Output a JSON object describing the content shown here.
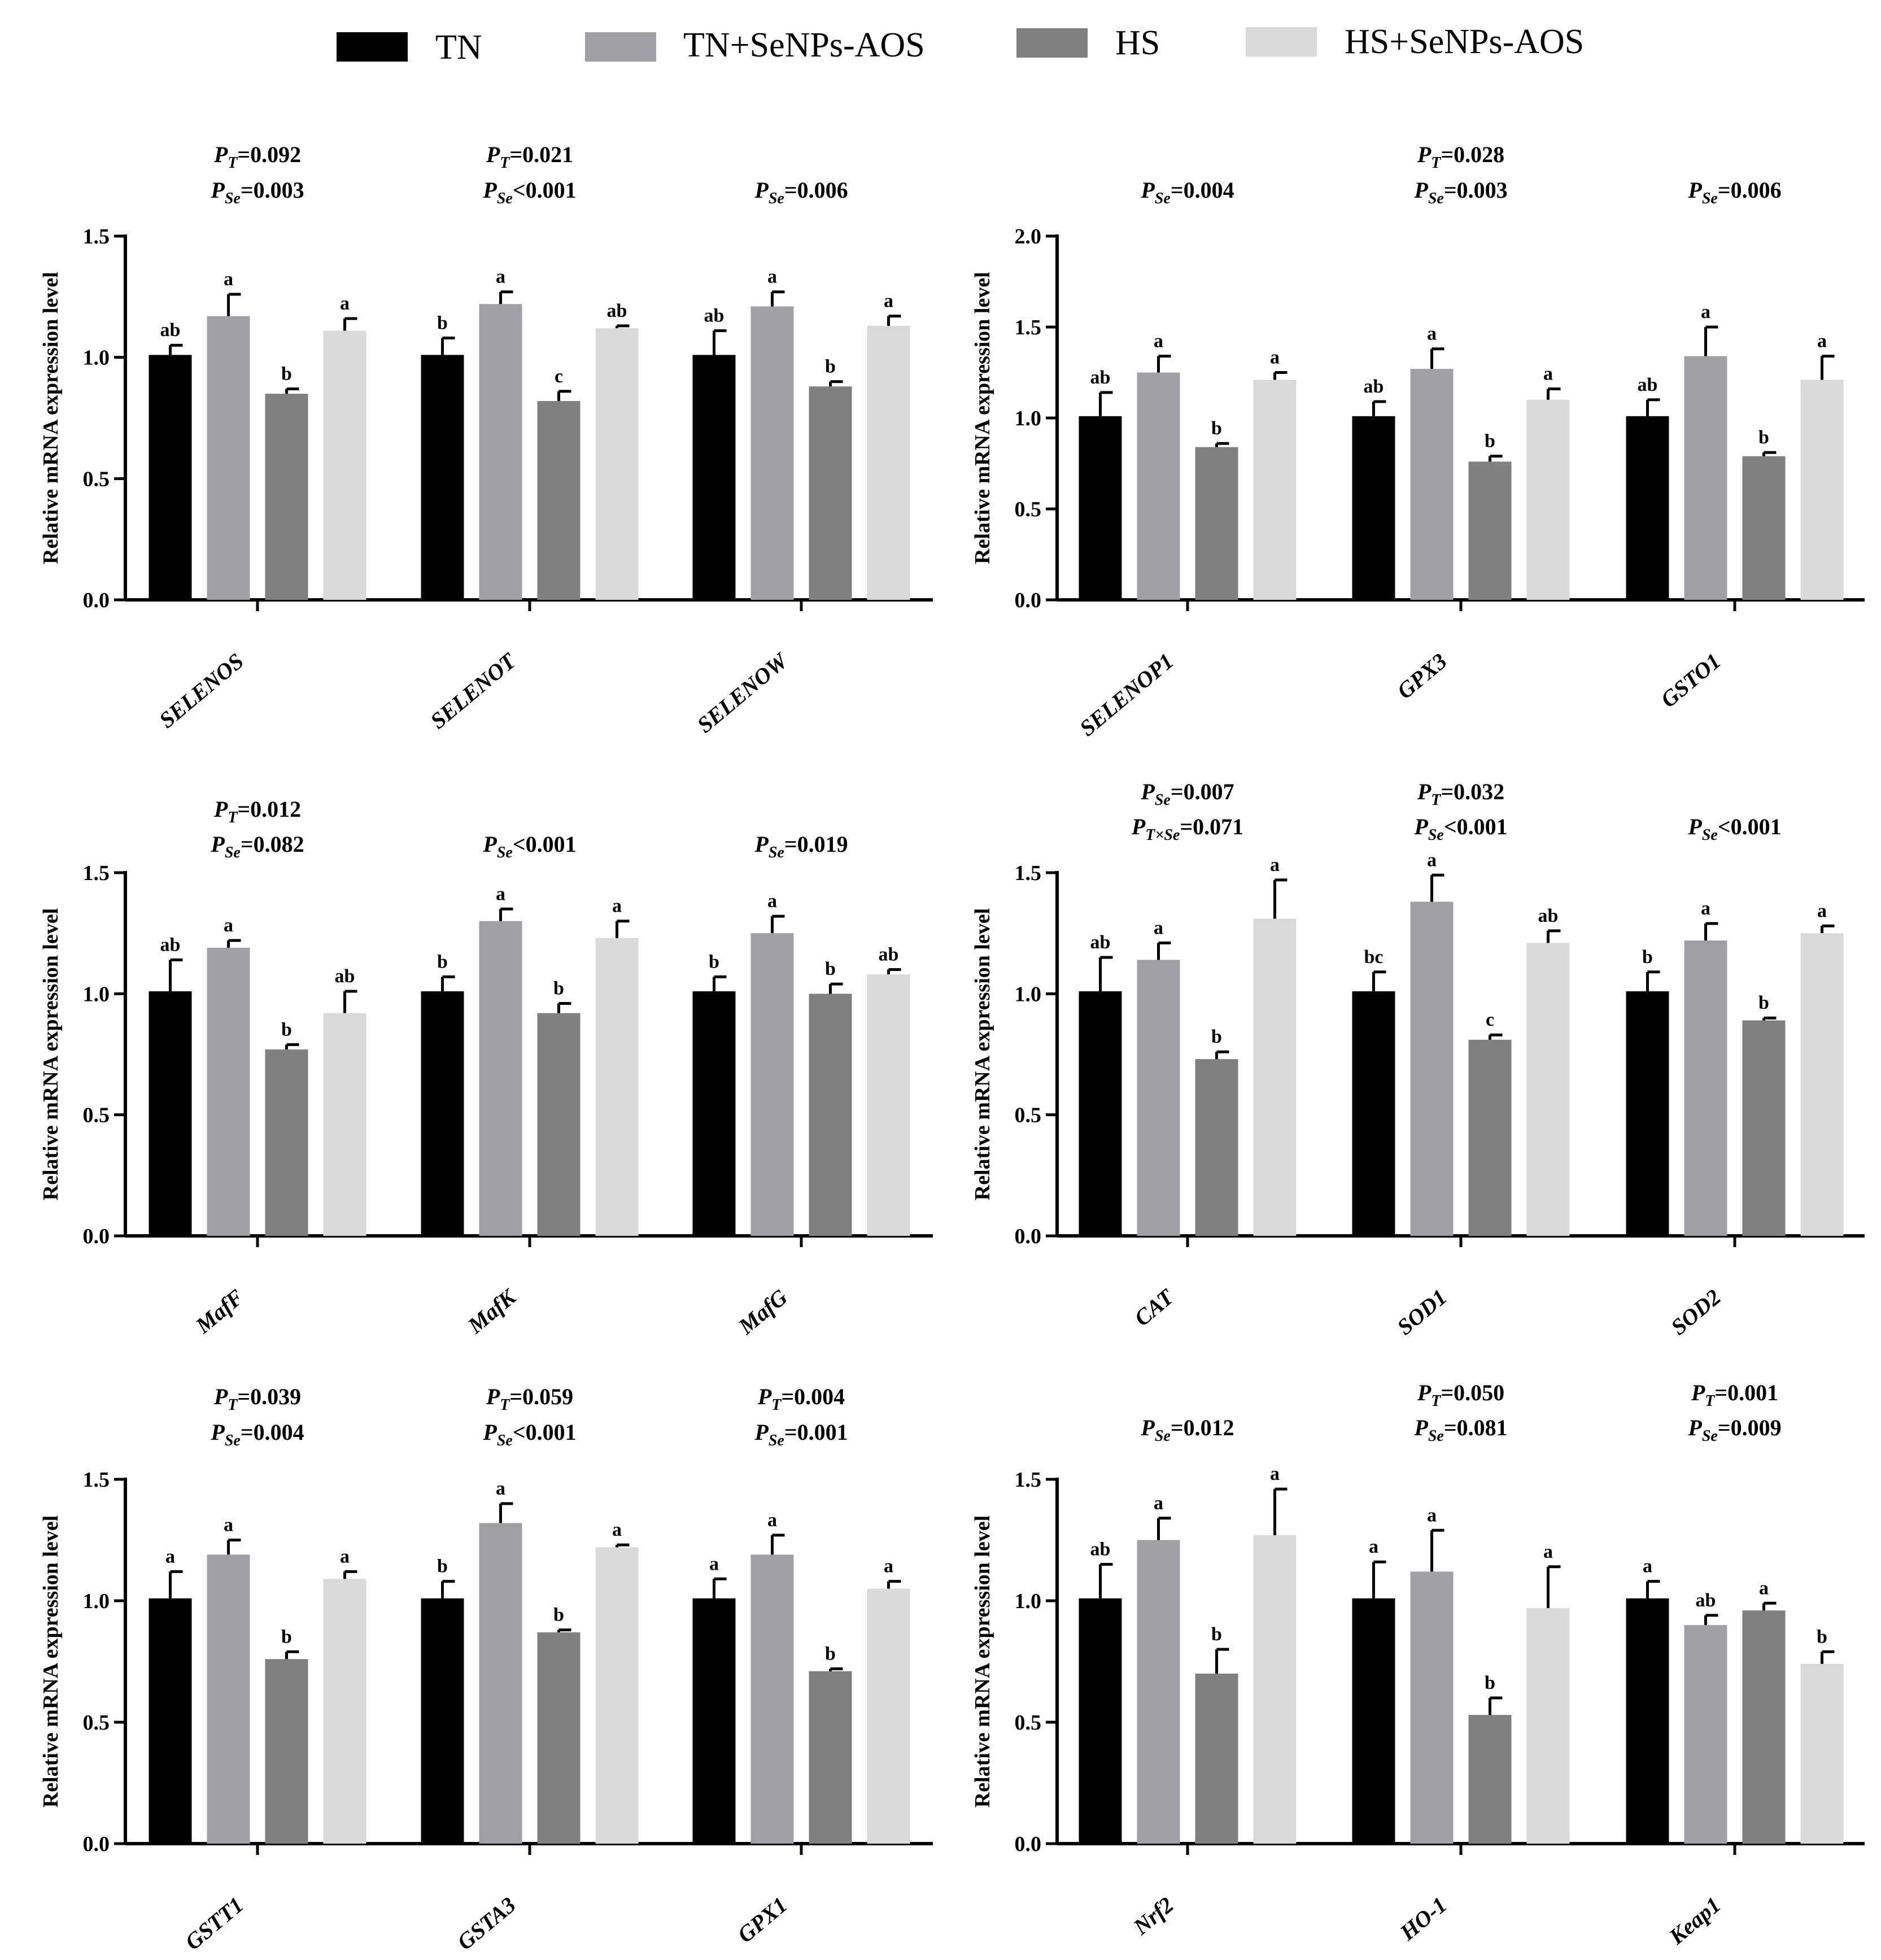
{
  "legend": {
    "items": [
      {
        "label": "TN",
        "color": "#000000"
      },
      {
        "label": "TN+SeNPs-AOS",
        "color": "#a0a0a4"
      },
      {
        "label": "HS",
        "color": "#808080"
      },
      {
        "label": "HS+SeNPs-AOS",
        "color": "#d9d9d9"
      }
    ]
  },
  "chart_data": [
    {
      "type": "bar",
      "ylabel": "Relative mRNA expression level",
      "ylim": [
        0,
        1.5
      ],
      "yticks": [
        "0.0",
        "0.5",
        "1.0",
        "1.5"
      ],
      "series_names": [
        "TN",
        "TN+SeNPs-AOS",
        "HS",
        "HS+SeNPs-AOS"
      ],
      "categories": [
        "SELENOS",
        "SELENOT",
        "SELENOW"
      ],
      "values": [
        [
          1.01,
          1.17,
          0.85,
          1.11
        ],
        [
          1.01,
          1.22,
          0.82,
          1.12
        ],
        [
          1.01,
          1.21,
          0.88,
          1.13
        ]
      ],
      "errors": [
        [
          0.04,
          0.09,
          0.02,
          0.05
        ],
        [
          0.07,
          0.05,
          0.04,
          0.01
        ],
        [
          0.1,
          0.06,
          0.02,
          0.04
        ]
      ],
      "letters": [
        [
          "ab",
          "a",
          "b",
          "a"
        ],
        [
          "b",
          "a",
          "c",
          "ab"
        ],
        [
          "ab",
          "a",
          "b",
          "a"
        ]
      ],
      "pvalues": [
        [
          {
            "sub": "T",
            "text": "=0.092"
          },
          {
            "sub": "Se",
            "text": "=0.003"
          }
        ],
        [
          {
            "sub": "T",
            "text": "=0.021"
          },
          {
            "sub": "Se",
            "text": "<0.001"
          }
        ],
        [
          {
            "sub": "Se",
            "text": "=0.006"
          }
        ]
      ]
    },
    {
      "type": "bar",
      "ylabel": "Relative mRNA expression level",
      "ylim": [
        0,
        2.0
      ],
      "yticks": [
        "0.0",
        "0.5",
        "1.0",
        "1.5",
        "2.0"
      ],
      "series_names": [
        "TN",
        "TN+SeNPs-AOS",
        "HS",
        "HS+SeNPs-AOS"
      ],
      "categories": [
        "SELENOP1",
        "GPX3",
        "GSTO1"
      ],
      "values": [
        [
          1.01,
          1.25,
          0.84,
          1.21
        ],
        [
          1.01,
          1.27,
          0.76,
          1.1
        ],
        [
          1.01,
          1.34,
          0.79,
          1.21
        ]
      ],
      "errors": [
        [
          0.13,
          0.09,
          0.02,
          0.04
        ],
        [
          0.08,
          0.11,
          0.03,
          0.06
        ],
        [
          0.09,
          0.16,
          0.02,
          0.13
        ]
      ],
      "letters": [
        [
          "ab",
          "a",
          "b",
          "a"
        ],
        [
          "ab",
          "a",
          "b",
          "a"
        ],
        [
          "ab",
          "a",
          "b",
          "a"
        ]
      ],
      "pvalues": [
        [
          {
            "sub": "Se",
            "text": "=0.004"
          }
        ],
        [
          {
            "sub": "T",
            "text": "=0.028"
          },
          {
            "sub": "Se",
            "text": "=0.003"
          }
        ],
        [
          {
            "sub": "Se",
            "text": "=0.006"
          }
        ]
      ]
    },
    {
      "type": "bar",
      "ylabel": "Relative mRNA expression level",
      "ylim": [
        0,
        1.5
      ],
      "yticks": [
        "0.0",
        "0.5",
        "1.0",
        "1.5"
      ],
      "series_names": [
        "TN",
        "TN+SeNPs-AOS",
        "HS",
        "HS+SeNPs-AOS"
      ],
      "categories": [
        "MafF",
        "MafK",
        "MafG"
      ],
      "values": [
        [
          1.01,
          1.19,
          0.77,
          0.92
        ],
        [
          1.01,
          1.3,
          0.92,
          1.23
        ],
        [
          1.01,
          1.25,
          1.0,
          1.08
        ]
      ],
      "errors": [
        [
          0.13,
          0.03,
          0.02,
          0.09
        ],
        [
          0.06,
          0.05,
          0.04,
          0.07
        ],
        [
          0.06,
          0.07,
          0.04,
          0.02
        ]
      ],
      "letters": [
        [
          "ab",
          "a",
          "b",
          "ab"
        ],
        [
          "b",
          "a",
          "b",
          "a"
        ],
        [
          "b",
          "a",
          "b",
          "ab"
        ]
      ],
      "pvalues": [
        [
          {
            "sub": "T",
            "text": "=0.012"
          },
          {
            "sub": "Se",
            "text": "=0.082"
          }
        ],
        [
          {
            "sub": "Se",
            "text": "<0.001"
          }
        ],
        [
          {
            "sub": "Se",
            "text": "=0.019"
          }
        ]
      ]
    },
    {
      "type": "bar",
      "ylabel": "Relative mRNA expression level",
      "ylim": [
        0,
        1.5
      ],
      "yticks": [
        "0.0",
        "0.5",
        "1.0",
        "1.5"
      ],
      "series_names": [
        "TN",
        "TN+SeNPs-AOS",
        "HS",
        "HS+SeNPs-AOS"
      ],
      "categories": [
        "CAT",
        "SOD1",
        "SOD2"
      ],
      "values": [
        [
          1.01,
          1.14,
          0.73,
          1.31
        ],
        [
          1.01,
          1.38,
          0.81,
          1.21
        ],
        [
          1.01,
          1.22,
          0.89,
          1.25
        ]
      ],
      "errors": [
        [
          0.14,
          0.07,
          0.03,
          0.16
        ],
        [
          0.08,
          0.11,
          0.02,
          0.05
        ],
        [
          0.08,
          0.07,
          0.01,
          0.03
        ]
      ],
      "letters": [
        [
          "ab",
          "a",
          "b",
          "a"
        ],
        [
          "bc",
          "a",
          "c",
          "ab"
        ],
        [
          "b",
          "a",
          "b",
          "a"
        ]
      ],
      "pvalues": [
        [
          {
            "sub": "Se",
            "text": "=0.007"
          },
          {
            "sub": "T×Se",
            "text": "=0.071"
          }
        ],
        [
          {
            "sub": "T",
            "text": "=0.032"
          },
          {
            "sub": "Se",
            "text": "<0.001"
          }
        ],
        [
          {
            "sub": "Se",
            "text": "<0.001"
          }
        ]
      ]
    },
    {
      "type": "bar",
      "ylabel": "Relative mRNA expression level",
      "ylim": [
        0,
        1.5
      ],
      "yticks": [
        "0.0",
        "0.5",
        "1.0",
        "1.5"
      ],
      "series_names": [
        "TN",
        "TN+SeNPs-AOS",
        "HS",
        "HS+SeNPs-AOS"
      ],
      "categories": [
        "GSTT1",
        "GSTA3",
        "GPX1"
      ],
      "values": [
        [
          1.01,
          1.19,
          0.76,
          1.09
        ],
        [
          1.01,
          1.32,
          0.87,
          1.22
        ],
        [
          1.01,
          1.19,
          0.71,
          1.05
        ]
      ],
      "errors": [
        [
          0.11,
          0.06,
          0.03,
          0.03
        ],
        [
          0.07,
          0.08,
          0.01,
          0.01
        ],
        [
          0.08,
          0.08,
          0.01,
          0.03
        ]
      ],
      "letters": [
        [
          "a",
          "a",
          "b",
          "a"
        ],
        [
          "b",
          "a",
          "b",
          "a"
        ],
        [
          "a",
          "a",
          "b",
          "a"
        ]
      ],
      "pvalues": [
        [
          {
            "sub": "T",
            "text": "=0.039"
          },
          {
            "sub": "Se",
            "text": "=0.004"
          }
        ],
        [
          {
            "sub": "T",
            "text": "=0.059"
          },
          {
            "sub": "Se",
            "text": "<0.001"
          }
        ],
        [
          {
            "sub": "T",
            "text": "=0.004"
          },
          {
            "sub": "Se",
            "text": "=0.001"
          }
        ]
      ]
    },
    {
      "type": "bar",
      "ylabel": "Relative mRNA expression level",
      "ylim": [
        0,
        1.5
      ],
      "yticks": [
        "0.0",
        "0.5",
        "1.0",
        "1.5"
      ],
      "series_names": [
        "TN",
        "TN+SeNPs-AOS",
        "HS",
        "HS+SeNPs-AOS"
      ],
      "categories": [
        "Nrf2",
        "HO-1",
        "Keap1"
      ],
      "values": [
        [
          1.01,
          1.25,
          0.7,
          1.27
        ],
        [
          1.01,
          1.12,
          0.53,
          0.97
        ],
        [
          1.01,
          0.9,
          0.96,
          0.74
        ]
      ],
      "errors": [
        [
          0.14,
          0.09,
          0.1,
          0.19
        ],
        [
          0.15,
          0.17,
          0.07,
          0.17
        ],
        [
          0.07,
          0.04,
          0.03,
          0.05
        ]
      ],
      "letters": [
        [
          "ab",
          "a",
          "b",
          "a"
        ],
        [
          "a",
          "a",
          "b",
          "a"
        ],
        [
          "a",
          "ab",
          "a",
          "b"
        ]
      ],
      "pvalues": [
        [
          {
            "sub": "Se",
            "text": "=0.012"
          }
        ],
        [
          {
            "sub": "T",
            "text": "=0.050"
          },
          {
            "sub": "Se",
            "text": "=0.081"
          }
        ],
        [
          {
            "sub": "T",
            "text": "=0.001"
          },
          {
            "sub": "Se",
            "text": "=0.009"
          }
        ]
      ]
    }
  ]
}
